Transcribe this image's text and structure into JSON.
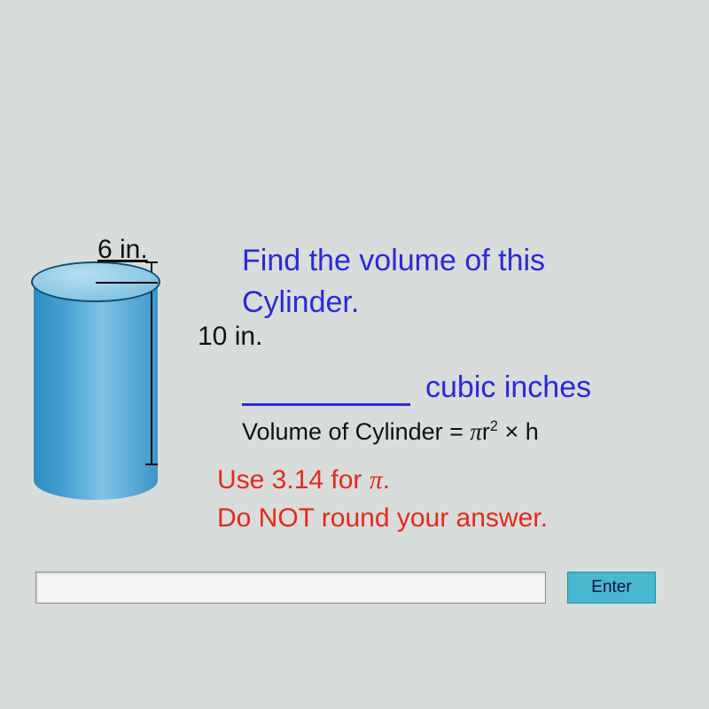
{
  "cylinder": {
    "radius_label": "6 in.",
    "height_label": "10 in.",
    "radius_value": 6,
    "height_value": 10,
    "colors": {
      "top_light": "#b4def2",
      "top_mid": "#8fc9e5",
      "side_dark": "#2b8cc1",
      "side_light": "#7fc4e6",
      "outline": "#0a4f73"
    }
  },
  "prompt": {
    "line1": "Find the volume of this",
    "line2": "Cylinder.",
    "units": "cubic inches"
  },
  "formula_text": "Volume of Cylinder = πr² × h",
  "notes": {
    "line1_prefix": "Use 3.14 for ",
    "line1_suffix": ".",
    "line2": "Do NOT round your answer."
  },
  "answer_input": {
    "value": "",
    "placeholder": ""
  },
  "enter_label": "Enter",
  "colors": {
    "background": "#d8dcda",
    "prompt_blue": "#2a2ad6",
    "note_red": "#e22a1a",
    "text_black": "#111111",
    "button_bg": "#47b8cf"
  },
  "typography": {
    "prompt_fontsize": 34,
    "label_fontsize": 30,
    "formula_fontsize": 27,
    "note_fontsize": 30,
    "font_family": "Comic Sans MS"
  }
}
